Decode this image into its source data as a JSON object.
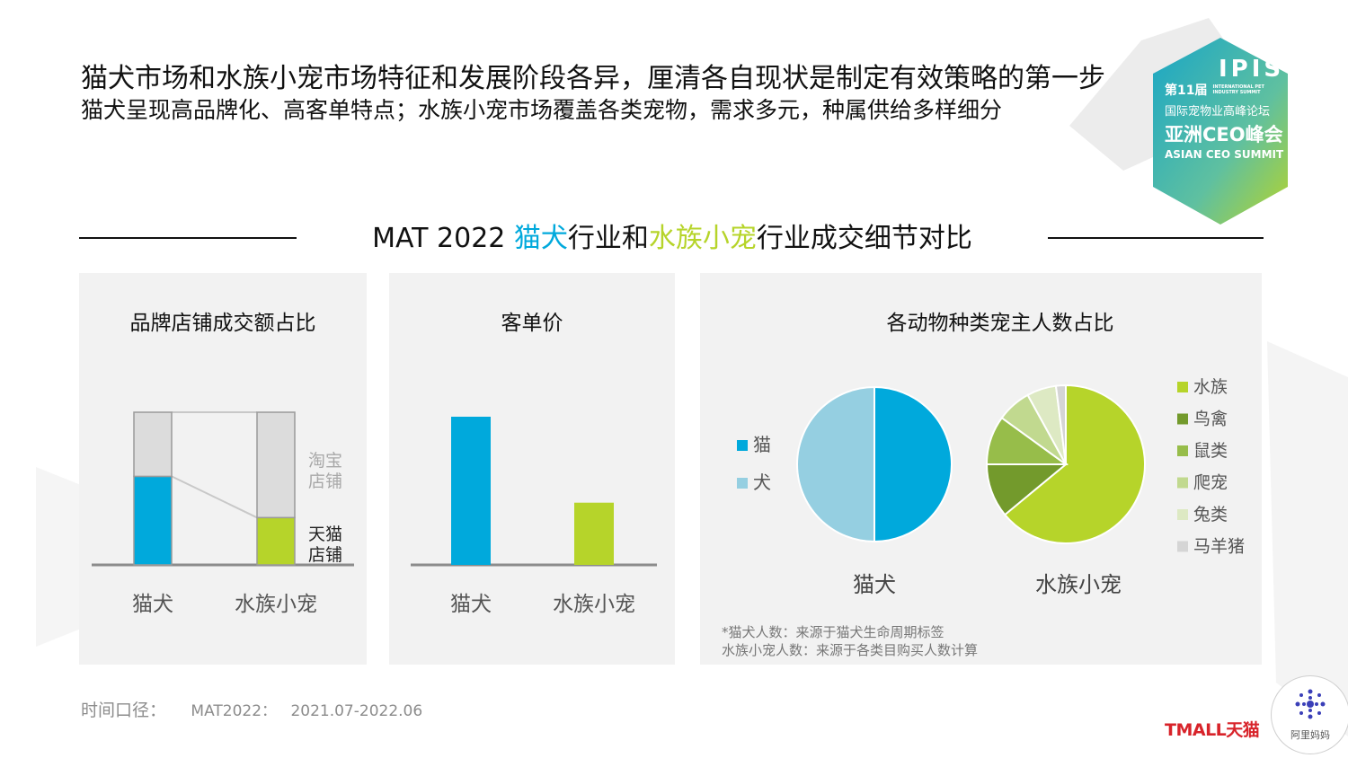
{
  "header": {
    "headline": "猫犬市场和水族小宠市场特征和发展阶段各异，厘清各自现状是制定有效策略的第一步",
    "subheadline": "猫犬呈现高品牌化、高客单特点；水族小宠市场覆盖各类宠物，需求多元，种属供给多样细分"
  },
  "section_title": {
    "prefix": "MAT 2022 ",
    "cat_dog": "猫犬",
    "mid": "行业和",
    "aquatic": "水族小宠",
    "suffix": "行业成交细节对比"
  },
  "event_badge": {
    "logo_text": "IPIS",
    "edition": "第11届",
    "en_small": "INTERNATIONAL PET INDUSTRY SUMMIT",
    "cn_name": "国际宠物业高峰论坛",
    "cn_title": "亚洲CEO峰会",
    "en_title": "ASIAN CEO SUMMIT"
  },
  "colors": {
    "cat_dog_blue": "#00a9dc",
    "aquatic_green": "#b6d42a",
    "light_blue": "#95cfe1",
    "gray_bar": "#dcdcdc"
  },
  "chart_data": [
    {
      "type": "bar",
      "stacked": true,
      "title": "品牌店铺成交额占比",
      "categories": [
        "猫犬",
        "水族小宠"
      ],
      "series": [
        {
          "name": "天猫店铺",
          "values": [
            58,
            31
          ],
          "color": "#00a9dc"
        },
        {
          "name": "淘宝店铺",
          "values": [
            42,
            69
          ],
          "color": "#dcdcdc"
        }
      ],
      "ylim": [
        0,
        100
      ],
      "tick_labels_y": false
    },
    {
      "type": "bar",
      "title": "客单价",
      "categories": [
        "猫犬",
        "水族小宠"
      ],
      "values": [
        100,
        42
      ],
      "ylim": [
        0,
        100
      ],
      "tick_labels_y": false
    },
    {
      "type": "pie",
      "title": "各动物种类宠主人数占比",
      "charts": [
        {
          "label": "猫犬",
          "slices": [
            {
              "name": "猫",
              "value": 50,
              "color": "#00a9dc"
            },
            {
              "name": "犬",
              "value": 50,
              "color": "#95cfe1"
            }
          ]
        },
        {
          "label": "水族小宠",
          "slices": [
            {
              "name": "水族",
              "value": 64,
              "color": "#b6d42a"
            },
            {
              "name": "鸟禽",
              "value": 11,
              "color": "#739a2c"
            },
            {
              "name": "鼠类",
              "value": 10,
              "color": "#97bd4a"
            },
            {
              "name": "爬宠",
              "value": 7,
              "color": "#c1d98f"
            },
            {
              "name": "兔类",
              "value": 6,
              "color": "#dde9c3"
            },
            {
              "name": "马羊猪",
              "value": 2,
              "color": "#d5d5d5"
            }
          ]
        }
      ],
      "footnotes": [
        "*猫犬人数：来源于猫犬生命周期标签",
        "水族小宠人数：来源于各类目购买人数计算"
      ]
    }
  ],
  "footer": {
    "label": "时间口径：",
    "period": "MAT2022：",
    "range": "2021.07-2022.06"
  },
  "logos": {
    "tmall": "TMALL天猫",
    "alimama": "阿里妈妈"
  }
}
